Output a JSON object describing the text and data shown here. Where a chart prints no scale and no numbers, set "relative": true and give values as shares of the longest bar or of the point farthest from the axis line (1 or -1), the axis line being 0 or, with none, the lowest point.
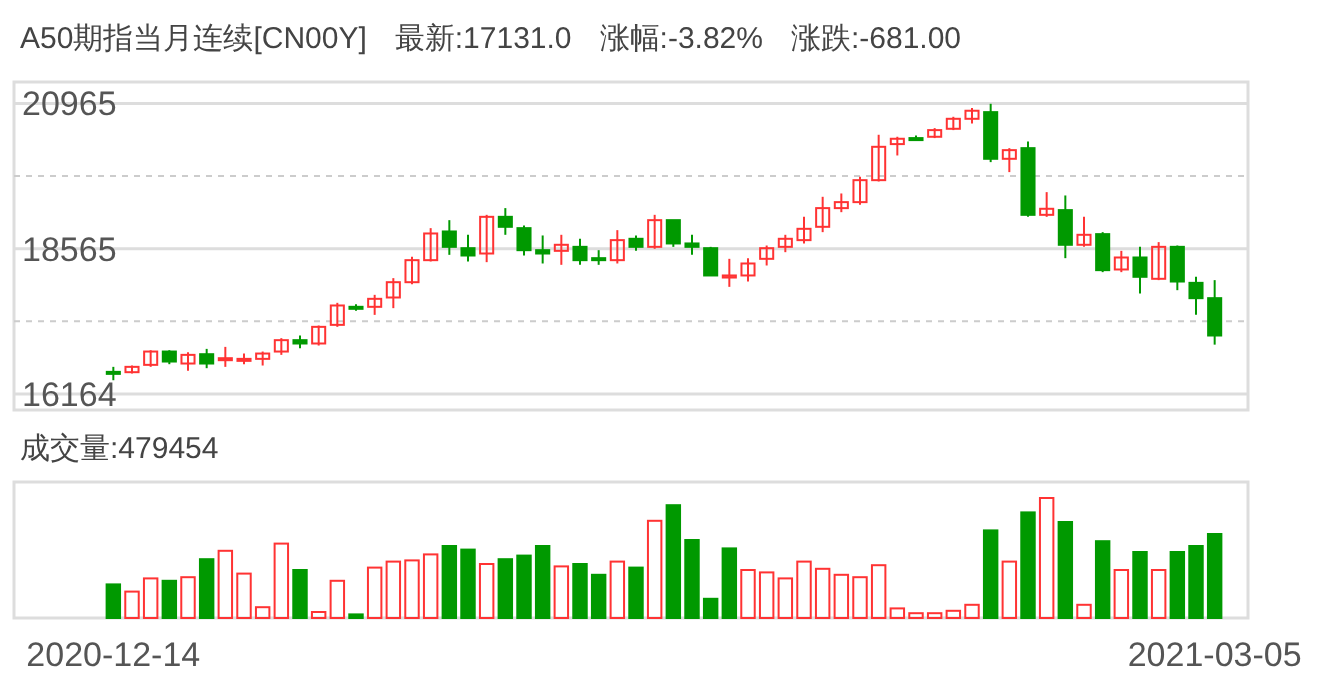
{
  "chart_data": [
    {
      "type": "candlestick",
      "title": "A50期指当月连续[CN00Y]",
      "annotations": [
        "最新:17131.0",
        "涨幅:-3.82%",
        "涨跌:-681.00"
      ],
      "categories": [
        null,
        null,
        null,
        null,
        null,
        null,
        null,
        null,
        null,
        null,
        null,
        null,
        null,
        null,
        null,
        null,
        null,
        null,
        null,
        null,
        null,
        null,
        null,
        null,
        null,
        null,
        null,
        null,
        null,
        null,
        null,
        null,
        null,
        null,
        null,
        null,
        null,
        null,
        null,
        null,
        null,
        null,
        null,
        null,
        null,
        null,
        null,
        null,
        null,
        null,
        null,
        null,
        null,
        null,
        null,
        null,
        null,
        null,
        null,
        null
      ],
      "ohlc": [
        [
          16530,
          16613,
          16392,
          16500
        ],
        [
          16525,
          16635,
          16503,
          16613
        ],
        [
          16646,
          16888,
          16613,
          16866
        ],
        [
          16866,
          16888,
          16657,
          16701
        ],
        [
          16668,
          16855,
          16547,
          16811
        ],
        [
          16822,
          16910,
          16591,
          16668
        ],
        [
          16723,
          16943,
          16613,
          16756
        ],
        [
          16723,
          16833,
          16657,
          16745
        ],
        [
          16745,
          16866,
          16635,
          16833
        ],
        [
          16866,
          17087,
          16811,
          17054
        ],
        [
          17054,
          17131,
          16921,
          16999
        ],
        [
          16999,
          17296,
          16965,
          17274
        ],
        [
          17307,
          17671,
          17274,
          17627
        ],
        [
          17605,
          17649,
          17539,
          17572
        ],
        [
          17605,
          17803,
          17472,
          17737
        ],
        [
          17759,
          18079,
          17583,
          18012
        ],
        [
          18012,
          18431,
          17979,
          18376
        ],
        [
          18376,
          18905,
          18354,
          18817
        ],
        [
          18850,
          19037,
          18464,
          18596
        ],
        [
          18574,
          18795,
          18354,
          18453
        ],
        [
          18486,
          19125,
          18343,
          19092
        ],
        [
          19092,
          19236,
          18795,
          18927
        ],
        [
          18905,
          18949,
          18453,
          18541
        ],
        [
          18541,
          18784,
          18321,
          18486
        ],
        [
          18530,
          18795,
          18299,
          18630
        ],
        [
          18596,
          18729,
          18299,
          18376
        ],
        [
          18409,
          18541,
          18299,
          18376
        ],
        [
          18376,
          18872,
          18321,
          18707
        ],
        [
          18729,
          18784,
          18530,
          18596
        ],
        [
          18596,
          19125,
          18563,
          19037
        ],
        [
          19037,
          19037,
          18596,
          18652
        ],
        [
          18652,
          18795,
          18464,
          18596
        ],
        [
          18574,
          18596,
          18123,
          18123
        ],
        [
          18089,
          18398,
          17935,
          18123
        ],
        [
          18123,
          18409,
          18023,
          18321
        ],
        [
          18398,
          18618,
          18288,
          18574
        ],
        [
          18596,
          18795,
          18508,
          18729
        ],
        [
          18707,
          19092,
          18652,
          18894
        ],
        [
          18927,
          19423,
          18839,
          19236
        ],
        [
          19236,
          19478,
          19169,
          19335
        ],
        [
          19335,
          19754,
          19291,
          19698
        ],
        [
          19698,
          20448,
          19676,
          20249
        ],
        [
          20294,
          20415,
          20106,
          20382
        ],
        [
          20393,
          20437,
          20360,
          20371
        ],
        [
          20415,
          20558,
          20393,
          20525
        ],
        [
          20547,
          20745,
          20525,
          20712
        ],
        [
          20712,
          20889,
          20635,
          20845
        ],
        [
          20822,
          20960,
          19996,
          20051
        ],
        [
          20051,
          20227,
          19831,
          20194
        ],
        [
          20227,
          20338,
          19092,
          19125
        ],
        [
          19125,
          19500,
          19092,
          19225
        ],
        [
          19203,
          19445,
          18409,
          18630
        ],
        [
          18630,
          19092,
          18596,
          18795
        ],
        [
          18806,
          18839,
          18178,
          18211
        ],
        [
          18222,
          18530,
          18178,
          18420
        ],
        [
          18420,
          18596,
          17825,
          18101
        ],
        [
          18068,
          18674,
          18046,
          18596
        ],
        [
          18596,
          18618,
          17880,
          18023
        ],
        [
          18001,
          18101,
          17472,
          17748
        ],
        [
          17748,
          18046,
          16980,
          17131
        ]
      ],
      "ylim": [
        15900,
        21320
      ],
      "yticks": [
        16164,
        {
          "value": 17365,
          "label": null
        },
        18565,
        {
          "value": 19765,
          "label": null
        },
        20965
      ],
      "grid": "y",
      "tick_labels": "y"
    },
    {
      "type": "bar",
      "title": "成交量:479454",
      "relative": true,
      "tick_labels": "x",
      "categories": [
        "2020-12-14",
        null,
        null,
        null,
        null,
        null,
        null,
        null,
        null,
        null,
        null,
        null,
        null,
        null,
        null,
        null,
        null,
        null,
        null,
        null,
        null,
        null,
        null,
        null,
        null,
        null,
        null,
        null,
        null,
        null,
        null,
        null,
        null,
        null,
        null,
        null,
        null,
        null,
        null,
        null,
        null,
        null,
        null,
        null,
        null,
        null,
        null,
        null,
        null,
        null,
        null,
        null,
        null,
        null,
        null,
        null,
        null,
        null,
        null,
        "2021-03-05"
      ],
      "values": [
        0.28,
        0.22,
        0.33,
        0.31,
        0.34,
        0.49,
        0.56,
        0.37,
        0.09,
        0.62,
        0.4,
        0.05,
        0.31,
        0.03,
        0.42,
        0.47,
        0.48,
        0.53,
        0.6,
        0.57,
        0.45,
        0.49,
        0.52,
        0.6,
        0.43,
        0.45,
        0.36,
        0.47,
        0.42,
        0.81,
        0.94,
        0.65,
        0.16,
        0.58,
        0.4,
        0.38,
        0.33,
        0.47,
        0.41,
        0.36,
        0.34,
        0.44,
        0.08,
        0.04,
        0.04,
        0.06,
        0.11,
        0.73,
        0.47,
        0.88,
        1,
        0.8,
        0.11,
        0.64,
        0.4,
        0.55,
        0.4,
        0.55,
        0.6,
        0.7
      ],
      "colors": [
        "#009900",
        "#ff3333",
        "#ff3333",
        "#009900",
        "#ff3333",
        "#009900",
        "#ff3333",
        "#ff3333",
        "#ff3333",
        "#ff3333",
        "#009900",
        "#ff3333",
        "#ff3333",
        "#009900",
        "#ff3333",
        "#ff3333",
        "#ff3333",
        "#ff3333",
        "#009900",
        "#009900",
        "#ff3333",
        "#009900",
        "#009900",
        "#009900",
        "#ff3333",
        "#009900",
        "#009900",
        "#ff3333",
        "#009900",
        "#ff3333",
        "#009900",
        "#009900",
        "#009900",
        "#009900",
        "#ff3333",
        "#ff3333",
        "#ff3333",
        "#ff3333",
        "#ff3333",
        "#ff3333",
        "#ff3333",
        "#ff3333",
        "#ff3333",
        "#ff3333",
        "#ff3333",
        "#ff3333",
        "#ff3333",
        "#009900",
        "#ff3333",
        "#009900",
        "#ff3333",
        "#009900",
        "#ff3333",
        "#009900",
        "#ff3333",
        "#009900",
        "#ff3333",
        "#009900",
        "#009900",
        "#009900"
      ]
    }
  ]
}
